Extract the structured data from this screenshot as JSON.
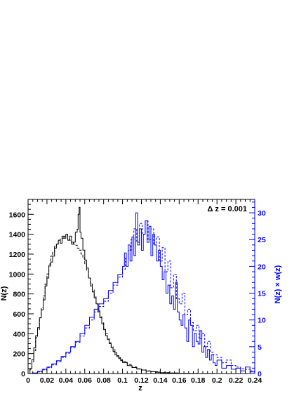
{
  "chart_data": {
    "type": "line",
    "annotation": "Δ z = 0.001",
    "xlabel": "z",
    "ylabel_left": "N(z)",
    "ylabel_right": "N(z) × w(z)",
    "xlim": [
      0,
      0.24
    ],
    "ylim_left": [
      0,
      1750
    ],
    "ylim_right": [
      0,
      32.5
    ],
    "x_ticks": [
      0,
      0.02,
      0.04,
      0.06,
      0.08,
      0.1,
      0.12,
      0.14,
      0.16,
      0.18,
      0.2,
      0.22,
      0.24
    ],
    "x_tick_labels": [
      "0",
      "0.02",
      "0.04",
      "0.06",
      "0.08",
      "0.1",
      "0.12",
      "0.14",
      "0.16",
      "0.18",
      "0.2",
      "0.22",
      "0.24"
    ],
    "y_left_ticks": [
      0,
      200,
      400,
      600,
      800,
      1000,
      1200,
      1400,
      1600
    ],
    "y_left_tick_labels": [
      "0",
      "200",
      "400",
      "600",
      "800",
      "1000",
      "1200",
      "1400",
      "1600"
    ],
    "y_right_ticks": [
      0,
      5,
      10,
      15,
      20,
      25,
      30
    ],
    "y_right_tick_labels": [
      "0",
      "5",
      "10",
      "15",
      "20",
      "25",
      "30"
    ],
    "colors": {
      "black": "#000000",
      "blue": "#0000ff"
    },
    "series": [
      {
        "color": "#000000",
        "dash": "solid",
        "axis": "left",
        "x": [
          0,
          0.002,
          0.004,
          0.006,
          0.008,
          0.01,
          0.012,
          0.014,
          0.016,
          0.018,
          0.02,
          0.022,
          0.024,
          0.026,
          0.028,
          0.03,
          0.032,
          0.034,
          0.036,
          0.038,
          0.04,
          0.042,
          0.044,
          0.046,
          0.048,
          0.05,
          0.052,
          0.053,
          0.054,
          0.055,
          0.056,
          0.058,
          0.06,
          0.062,
          0.064,
          0.066,
          0.068,
          0.07,
          0.072,
          0.074,
          0.076,
          0.078,
          0.08,
          0.082,
          0.084,
          0.086,
          0.088,
          0.09,
          0.092,
          0.094,
          0.096,
          0.098,
          0.1,
          0.105,
          0.11,
          0.115,
          0.12,
          0.125,
          0.13,
          0.135,
          0.14,
          0.15,
          0.16,
          0.17,
          0.18,
          0.2
        ],
        "y": [
          0,
          50,
          140,
          260,
          380,
          460,
          560,
          640,
          740,
          880,
          960,
          1080,
          1120,
          1180,
          1260,
          1300,
          1340,
          1310,
          1380,
          1360,
          1400,
          1340,
          1380,
          1300,
          1320,
          1420,
          1450,
          1600,
          1670,
          1420,
          1360,
          1240,
          1140,
          1060,
          960,
          880,
          820,
          760,
          700,
          620,
          560,
          500,
          440,
          380,
          340,
          300,
          260,
          220,
          190,
          170,
          150,
          130,
          110,
          80,
          60,
          45,
          35,
          25,
          18,
          12,
          8,
          4,
          2,
          1,
          0,
          0
        ]
      },
      {
        "color": "#000000",
        "dash": "4,2",
        "axis": "left",
        "x": [
          0,
          0.002,
          0.004,
          0.006,
          0.008,
          0.01,
          0.012,
          0.014,
          0.016,
          0.018,
          0.02,
          0.022,
          0.024,
          0.026,
          0.028,
          0.03,
          0.032,
          0.034,
          0.036,
          0.038,
          0.04,
          0.042,
          0.044,
          0.046,
          0.048,
          0.05,
          0.052,
          0.054,
          0.056,
          0.058,
          0.06,
          0.062,
          0.064,
          0.066,
          0.068,
          0.07,
          0.072,
          0.074,
          0.076,
          0.078,
          0.08,
          0.082,
          0.084,
          0.086,
          0.088,
          0.09,
          0.092,
          0.094,
          0.096,
          0.098,
          0.1,
          0.105,
          0.11,
          0.115,
          0.12,
          0.125,
          0.13,
          0.14,
          0.15,
          0.16,
          0.18,
          0.2
        ],
        "y": [
          0,
          40,
          120,
          230,
          360,
          440,
          560,
          660,
          780,
          900,
          1000,
          1100,
          1180,
          1220,
          1280,
          1300,
          1330,
          1350,
          1360,
          1380,
          1380,
          1350,
          1340,
          1320,
          1300,
          1290,
          1260,
          1240,
          1200,
          1160,
          1100,
          1040,
          960,
          900,
          840,
          770,
          700,
          630,
          570,
          510,
          450,
          400,
          350,
          310,
          270,
          240,
          210,
          180,
          160,
          140,
          120,
          90,
          65,
          48,
          36,
          26,
          18,
          9,
          5,
          2,
          1,
          0
        ]
      },
      {
        "color": "#0000ff",
        "dash": "solid",
        "axis": "right",
        "x": [
          0.004,
          0.01,
          0.015,
          0.02,
          0.025,
          0.03,
          0.035,
          0.04,
          0.045,
          0.05,
          0.055,
          0.06,
          0.065,
          0.07,
          0.075,
          0.08,
          0.085,
          0.09,
          0.095,
          0.1,
          0.102,
          0.104,
          0.106,
          0.108,
          0.11,
          0.112,
          0.114,
          0.116,
          0.118,
          0.12,
          0.122,
          0.124,
          0.126,
          0.128,
          0.13,
          0.132,
          0.134,
          0.136,
          0.138,
          0.14,
          0.142,
          0.144,
          0.146,
          0.148,
          0.15,
          0.152,
          0.154,
          0.156,
          0.158,
          0.16,
          0.162,
          0.164,
          0.166,
          0.168,
          0.17,
          0.172,
          0.174,
          0.176,
          0.178,
          0.18,
          0.182,
          0.184,
          0.186,
          0.188,
          0.19,
          0.192,
          0.194,
          0.196,
          0.198,
          0.2,
          0.205,
          0.21,
          0.215,
          0.22,
          0.225,
          0.23,
          0.235,
          0.24
        ],
        "y": [
          0.1,
          0.4,
          0.8,
          1.2,
          1.8,
          2.4,
          3.2,
          4.0,
          5.0,
          6.0,
          7.5,
          9.0,
          10.5,
          12.0,
          13.0,
          14.0,
          15.5,
          17.0,
          18.5,
          20.0,
          22.5,
          20.0,
          24.0,
          21.0,
          25.5,
          22.0,
          30.0,
          24.0,
          27.0,
          23.0,
          26.0,
          28.5,
          24.5,
          27.5,
          22.0,
          26.0,
          24.0,
          21.0,
          23.0,
          20.0,
          17.5,
          19.0,
          15.0,
          16.5,
          13.0,
          14.5,
          12.0,
          17.0,
          11.5,
          10.0,
          9.0,
          11.0,
          8.5,
          6.0,
          10.0,
          9.0,
          5.0,
          7.5,
          6.0,
          5.5,
          8.0,
          4.0,
          5.0,
          3.0,
          4.5,
          2.5,
          3.5,
          2.0,
          1.5,
          2.5,
          1.0,
          1.5,
          0.8,
          1.0,
          0.5,
          1.2,
          0.3,
          0.2
        ]
      },
      {
        "color": "#0000ff",
        "dash": "3,2",
        "axis": "right",
        "x": [
          0.004,
          0.01,
          0.015,
          0.02,
          0.025,
          0.03,
          0.035,
          0.04,
          0.045,
          0.05,
          0.055,
          0.06,
          0.065,
          0.07,
          0.075,
          0.08,
          0.085,
          0.09,
          0.095,
          0.1,
          0.103,
          0.106,
          0.109,
          0.112,
          0.115,
          0.118,
          0.121,
          0.124,
          0.127,
          0.13,
          0.133,
          0.136,
          0.139,
          0.142,
          0.145,
          0.148,
          0.151,
          0.154,
          0.157,
          0.16,
          0.163,
          0.166,
          0.169,
          0.172,
          0.175,
          0.178,
          0.181,
          0.184,
          0.187,
          0.19,
          0.193,
          0.196,
          0.2,
          0.205,
          0.21,
          0.215,
          0.22,
          0.225,
          0.23,
          0.235,
          0.24
        ],
        "y": [
          0.1,
          0.3,
          0.7,
          1.1,
          1.6,
          2.2,
          3.0,
          3.8,
          4.8,
          5.8,
          7.0,
          8.5,
          10.0,
          11.5,
          12.5,
          13.5,
          15.0,
          16.5,
          18.0,
          19.5,
          21.5,
          23.0,
          25.0,
          27.0,
          24.5,
          28.0,
          26.0,
          28.5,
          25.0,
          27.0,
          24.0,
          25.5,
          21.0,
          23.5,
          19.0,
          21.0,
          16.0,
          18.5,
          14.0,
          13.0,
          15.0,
          11.0,
          12.0,
          9.5,
          8.0,
          9.0,
          6.5,
          7.5,
          5.0,
          6.0,
          4.0,
          3.5,
          3.0,
          2.0,
          2.5,
          1.5,
          1.2,
          0.9,
          0.8,
          0.5,
          0.3
        ]
      }
    ]
  }
}
